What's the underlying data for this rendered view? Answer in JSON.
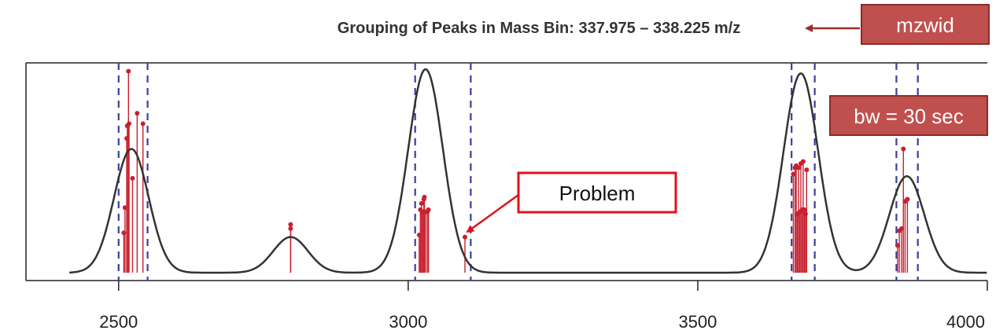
{
  "chart_data": {
    "type": "line",
    "title": "Grouping of Peaks in Mass Bin: 337.975 – 338.225 m/z",
    "xlabel": "",
    "ylabel": "",
    "xlim": [
      2340,
      4000
    ],
    "ylim": [
      0,
      1.0
    ],
    "x_ticks": [
      2500,
      3000,
      3500,
      4000
    ],
    "x_tick_labels": [
      "2500",
      "3000",
      "3500",
      "4000"
    ],
    "density_peaks": [
      {
        "center": 2522,
        "height": 0.59
      },
      {
        "center": 2797,
        "height": 0.17
      },
      {
        "center": 3030,
        "height": 0.97
      },
      {
        "center": 3678,
        "height": 0.95
      },
      {
        "center": 3861,
        "height": 0.46
      }
    ],
    "density_range": [
      2415,
      4000
    ],
    "group_boundaries": [
      2500,
      2550,
      3012,
      3108,
      3662,
      3702,
      3843,
      3880
    ],
    "sticks": [
      {
        "x": 2509,
        "y": 0.19
      },
      {
        "x": 2511,
        "y": 0.31
      },
      {
        "x": 2514,
        "y": 0.64
      },
      {
        "x": 2515,
        "y": 0.7
      },
      {
        "x": 2517,
        "y": 0.96
      },
      {
        "x": 2518,
        "y": 0.71
      },
      {
        "x": 2524,
        "y": 0.45
      },
      {
        "x": 2532,
        "y": 0.76
      },
      {
        "x": 2542,
        "y": 0.71
      },
      {
        "x": 2797,
        "y": 0.21
      },
      {
        "x": 2797,
        "y": 0.23
      },
      {
        "x": 3019,
        "y": 0.18
      },
      {
        "x": 3021,
        "y": 0.3
      },
      {
        "x": 3023,
        "y": 0.33
      },
      {
        "x": 3025,
        "y": 0.29
      },
      {
        "x": 3027,
        "y": 0.35
      },
      {
        "x": 3028,
        "y": 0.36
      },
      {
        "x": 3030,
        "y": 0.29
      },
      {
        "x": 3033,
        "y": 0.29
      },
      {
        "x": 3035,
        "y": 0.3
      },
      {
        "x": 3098,
        "y": 0.17
      },
      {
        "x": 3665,
        "y": 0.47
      },
      {
        "x": 3668,
        "y": 0.5
      },
      {
        "x": 3670,
        "y": 0.51
      },
      {
        "x": 3672,
        "y": 0.28
      },
      {
        "x": 3674,
        "y": 0.5
      },
      {
        "x": 3676,
        "y": 0.29
      },
      {
        "x": 3678,
        "y": 0.52
      },
      {
        "x": 3680,
        "y": 0.3
      },
      {
        "x": 3682,
        "y": 0.53
      },
      {
        "x": 3684,
        "y": 0.3
      },
      {
        "x": 3686,
        "y": 0.28
      },
      {
        "x": 3688,
        "y": 0.49
      },
      {
        "x": 3845,
        "y": 0.13
      },
      {
        "x": 3848,
        "y": 0.2
      },
      {
        "x": 3852,
        "y": 0.21
      },
      {
        "x": 3855,
        "y": 0.59
      },
      {
        "x": 3858,
        "y": 0.34
      },
      {
        "x": 3862,
        "y": 0.35
      }
    ],
    "colors": {
      "density": "#333333",
      "sticks": "#c8202e",
      "boundaries": "#3b3f9c",
      "axis": "#222222",
      "box_fill": "#c0504d",
      "box_border": "#8c2a27",
      "problem_border": "#e0111b",
      "arrow_dark": "#9b2d28",
      "arrow_red": "#e0111b"
    },
    "annotations": {
      "mzwid": "mzwid",
      "bw": "bw = 30 sec",
      "problem": "Problem"
    }
  }
}
